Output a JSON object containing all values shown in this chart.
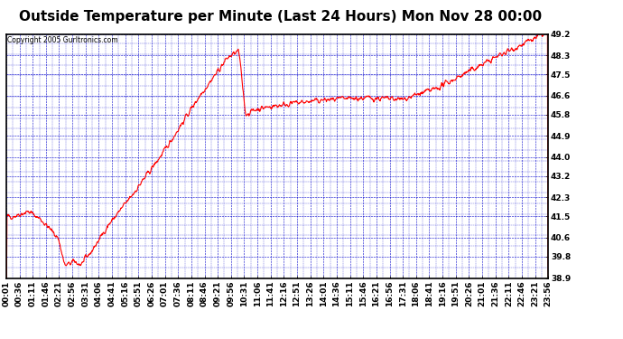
{
  "title": "Outside Temperature per Minute (Last 24 Hours) Mon Nov 28 00:00",
  "copyright": "Copyright 2005 Gurltronics.com",
  "yticks": [
    38.9,
    39.8,
    40.6,
    41.5,
    42.3,
    43.2,
    44.0,
    44.9,
    45.8,
    46.6,
    47.5,
    48.3,
    49.2
  ],
  "xtick_labels": [
    "00:01",
    "00:36",
    "01:11",
    "01:46",
    "02:21",
    "02:56",
    "03:31",
    "04:06",
    "04:41",
    "05:16",
    "05:51",
    "06:26",
    "07:01",
    "07:36",
    "08:11",
    "08:46",
    "09:21",
    "09:56",
    "10:31",
    "11:06",
    "11:41",
    "12:16",
    "12:51",
    "13:26",
    "14:01",
    "14:36",
    "15:11",
    "15:46",
    "16:21",
    "16:56",
    "17:31",
    "18:06",
    "18:41",
    "19:16",
    "19:51",
    "20:26",
    "21:01",
    "21:36",
    "22:11",
    "22:46",
    "23:21",
    "23:56"
  ],
  "line_color": "#ff0000",
  "grid_color": "#0000cc",
  "background_color": "#ffffff",
  "plot_bg_color": "#ffffff",
  "title_fontsize": 11,
  "copyright_fontsize": 5.5,
  "tick_label_fontsize": 6.5,
  "ymin": 38.9,
  "ymax": 49.2,
  "figwidth": 6.9,
  "figheight": 3.75,
  "dpi": 100
}
